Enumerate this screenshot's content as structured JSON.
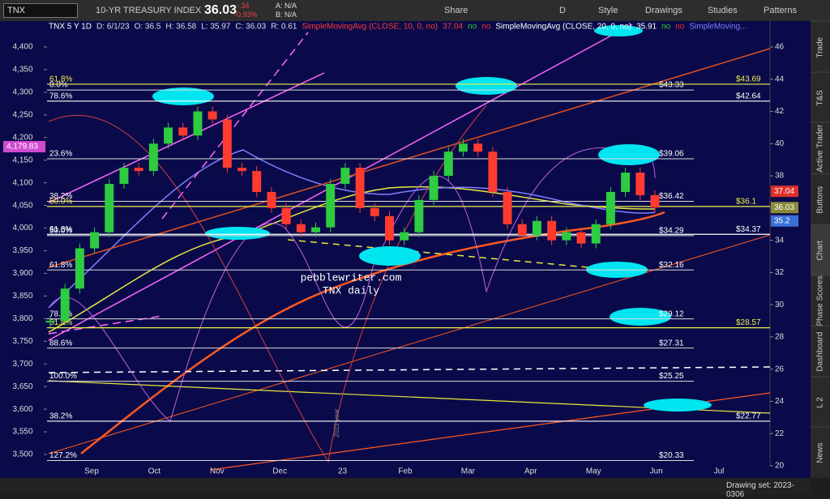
{
  "toolbar": {
    "symbol": "TNX",
    "description": "10-YR TREASURY INDEX",
    "last": "36.03",
    "change": "-.34",
    "change_pct": "-0.93%",
    "ask": "A: N/A",
    "bid": "B: N/A",
    "buttons": [
      "Share",
      "D",
      "Style",
      "Drawings",
      "Studies",
      "Patterns"
    ]
  },
  "legend": {
    "symbol": "TNX 5 Y 1D",
    "items": [
      "D: 6/1/23",
      "O: 36.5",
      "H: 36.58",
      "L: 35.97",
      "C: 36.03",
      "R: 0.61"
    ],
    "studies": [
      {
        "name": "SimpleMovingAvg (CLOSE, 10, 0, no)",
        "value": "37.04",
        "flags": [
          "no",
          "no"
        ]
      },
      {
        "name": "SimpleMovingAvg (CLOSE, 20, 0, no)",
        "value": "35.91",
        "flags": [
          "no",
          "no"
        ]
      },
      {
        "name": "SimpleMoving..."
      }
    ]
  },
  "chart_data": {
    "type": "candlestick",
    "series": [
      {
        "axis": "y2",
        "values": [
          29.0,
          31.0,
          33.5,
          34.5,
          37.5,
          38.5,
          38.3,
          40.0,
          41.0,
          40.5,
          42.0,
          41.5,
          38.5,
          38.3,
          37.0,
          36.0,
          35.0,
          34.5,
          34.8,
          37.5,
          38.5,
          36.0,
          35.5,
          34.0,
          34.5,
          36.5,
          38.0,
          39.5,
          40.0,
          39.5,
          37.0,
          35.0,
          34.3,
          35.2,
          34.0,
          34.5,
          33.8,
          35.0,
          37.0,
          38.2,
          36.8,
          36.03
        ]
      }
    ],
    "x_labels": [
      "Sep",
      "Oct",
      "Nov",
      "Dec",
      "23",
      "Feb",
      "Mar",
      "Apr",
      "May",
      "Jun",
      "Jul"
    ],
    "ylim": [
      3500,
      4400
    ],
    "yticks": [
      {
        "value": 4400,
        "label": "4,400"
      },
      {
        "value": 4350,
        "label": "4,350"
      },
      {
        "value": 4300,
        "label": "4,300"
      },
      {
        "value": 4250,
        "label": "4,250"
      },
      {
        "value": 4200,
        "label": "4,200"
      },
      {
        "value": 4150,
        "label": "4,150"
      },
      {
        "value": 4100,
        "label": "4,100"
      },
      {
        "value": 4050,
        "label": "4,050"
      },
      {
        "value": 4000,
        "label": "4,000"
      },
      {
        "value": 3950,
        "label": "3,950"
      },
      {
        "value": 3900,
        "label": "3,900"
      },
      {
        "value": 3850,
        "label": "3,850"
      },
      {
        "value": 3800,
        "label": "3,800"
      },
      {
        "value": 3750,
        "label": "3,750"
      },
      {
        "value": 3700,
        "label": "3,700"
      },
      {
        "value": 3650,
        "label": "3,650"
      },
      {
        "value": 3600,
        "label": "3,600"
      },
      {
        "value": 3550,
        "label": "3,550"
      },
      {
        "value": 3500,
        "label": "3,500"
      }
    ],
    "y2lim": [
      20,
      46
    ],
    "y2ticks": [
      46,
      44,
      42,
      40,
      38,
      36,
      34,
      32,
      30,
      28,
      26,
      24,
      22,
      20
    ],
    "levels": [
      {
        "pct": "0.0%",
        "price": 43.33,
        "price_label": "$43.33"
      },
      {
        "pct": "23.6%",
        "price": 39.06,
        "price_label": "$39.06"
      },
      {
        "pct": "38.2%",
        "price": 36.42,
        "price_label": "$36.42"
      },
      {
        "pct": "50.0%",
        "price": 34.29,
        "price_label": "$34.29"
      },
      {
        "pct": "61.8%",
        "price": 32.16,
        "price_label": "$32.16"
      },
      {
        "pct": "78.6%",
        "price": 29.12,
        "price_label": "$29.12"
      },
      {
        "pct": "88.6%",
        "price": 27.31,
        "price_label": "$27.31"
      },
      {
        "pct": "100.0%",
        "price": 25.25,
        "price_label": "$25.25"
      },
      {
        "pct": "127.2%",
        "price": 20.33,
        "price_label": "$20.33"
      }
    ],
    "extension_levels": [
      {
        "pct": "61.8%",
        "price": 43.69,
        "price_label": "$43.69",
        "color": "#f0f04a"
      },
      {
        "pct": "78.6%",
        "price": 42.64,
        "price_label": "$42.64",
        "color": "#ffffff"
      },
      {
        "pct": "50.0%",
        "price": 36.1,
        "price_label": "$36.1",
        "color": "#f0f04a"
      },
      {
        "pct": "61.8%",
        "price": 34.37,
        "price_label": "$34.37",
        "color": "#ffffff"
      },
      {
        "pct": "61.8%",
        "price": 28.57,
        "price_label": "$28.57",
        "color": "#f0f04a"
      },
      {
        "pct": "38.2%",
        "price": 22.77,
        "price_label": "$22.77",
        "color": "#ffffff"
      }
    ],
    "price_tags": [
      {
        "label": "37.04",
        "value": 37.04,
        "color": "#e0302c"
      },
      {
        "label": "36.03",
        "value": 36.03,
        "color": "#8a8a3a"
      },
      {
        "label": "35.2",
        "value": 35.2,
        "color": "#3a6fd8"
      }
    ],
    "left_tag": {
      "label": "4,179.83",
      "value": 4179.83,
      "color": "#d04ad0"
    },
    "annotations": [
      "pebblewriter.com",
      "TNX daily",
      "2022 year"
    ]
  },
  "sidebar": [
    "Trade",
    "T&S",
    "Active Trader",
    "Buttons",
    "Chart",
    "Phase Scores",
    "Dashboard",
    "L 2",
    "News"
  ],
  "status": {
    "drawing_set": "Drawing set: 2023-0306"
  }
}
